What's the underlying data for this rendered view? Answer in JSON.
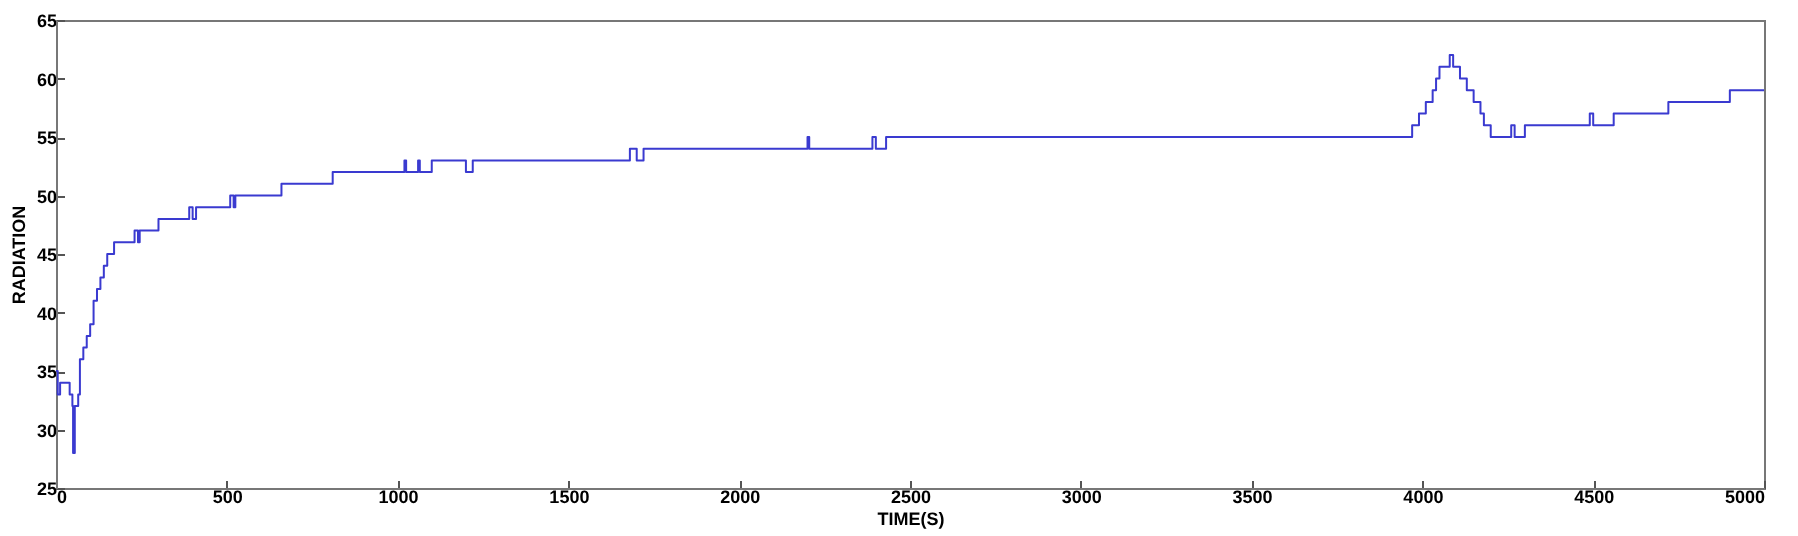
{
  "chart_data": {
    "type": "step",
    "xlabel": "TIME(S)",
    "ylabel": "RADIATION",
    "x": [
      0,
      5,
      12,
      30,
      40,
      48,
      50,
      55,
      65,
      70,
      80,
      90,
      100,
      110,
      120,
      130,
      140,
      150,
      170,
      230,
      240,
      245,
      300,
      390,
      400,
      410,
      510,
      520,
      525,
      660,
      810,
      1020,
      1025,
      1060,
      1065,
      1100,
      1200,
      1220,
      1680,
      1700,
      1720,
      2200,
      2205,
      2390,
      2400,
      2430,
      3970,
      3990,
      4010,
      4030,
      4040,
      4050,
      4080,
      4090,
      4110,
      4130,
      4150,
      4170,
      4180,
      4200,
      4260,
      4270,
      4300,
      4490,
      4500,
      4560,
      4720,
      4900,
      5000
    ],
    "series": [
      {
        "color": "#3a3ad0",
        "values": [
          35,
          33,
          34,
          34,
          33,
          32,
          28,
          32,
          33,
          36,
          37,
          38,
          39,
          41,
          42,
          43,
          44,
          45,
          46,
          47,
          46,
          47,
          48,
          49,
          48,
          49,
          50,
          49,
          50,
          51,
          52,
          53,
          52,
          53,
          52,
          53,
          52,
          53,
          54,
          53,
          54,
          55,
          54,
          55,
          54,
          55,
          56,
          57,
          58,
          59,
          60,
          61,
          62,
          61,
          60,
          59,
          58,
          57,
          56,
          55,
          56,
          55,
          56,
          57,
          56,
          57,
          58,
          59,
          59
        ]
      }
    ],
    "xlim": [
      0,
      5000
    ],
    "xticks": [
      0,
      500,
      1000,
      1500,
      2000,
      2500,
      3000,
      3500,
      4000,
      4500,
      5000
    ],
    "ylim": [
      25,
      65
    ],
    "yticks": [
      25,
      30,
      35,
      40,
      45,
      50,
      55,
      60,
      65
    ],
    "grid": false
  }
}
